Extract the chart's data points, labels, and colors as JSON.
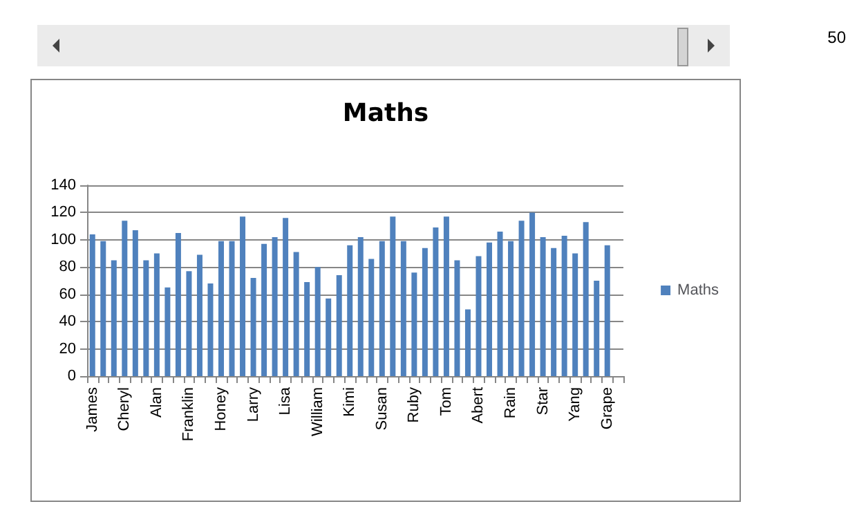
{
  "chart_data": {
    "type": "bar",
    "title": "Maths",
    "categories": [
      "James",
      null,
      null,
      "Cheryl",
      null,
      null,
      "Alan",
      null,
      null,
      "Franklin",
      null,
      null,
      "Honey",
      null,
      null,
      "Larry",
      null,
      null,
      "Lisa",
      null,
      null,
      "William",
      null,
      null,
      "Kimi",
      null,
      null,
      "Susan",
      null,
      null,
      "Ruby",
      null,
      null,
      "Tom",
      null,
      null,
      "Abert",
      null,
      null,
      "Rain",
      null,
      null,
      "Star",
      null,
      null,
      "Yang",
      null,
      null,
      "Grape",
      null
    ],
    "series": [
      {
        "name": "Maths",
        "color": "#4f81bd",
        "values": [
          104,
          99,
          85,
          114,
          107,
          85,
          90,
          65,
          105,
          77,
          89,
          68,
          99,
          99,
          117,
          72,
          97,
          102,
          116,
          91,
          69,
          80,
          57,
          74,
          96,
          102,
          86,
          99,
          117,
          99,
          76,
          94,
          109,
          117,
          85,
          49,
          88,
          98,
          106,
          99,
          114,
          120,
          102,
          94,
          103,
          90,
          113,
          70,
          96,
          null
        ]
      }
    ],
    "ylim": [
      0,
      140
    ],
    "yticks": [
      0,
      20,
      40,
      60,
      80,
      100,
      120,
      140
    ],
    "grid": "y",
    "legend": "right",
    "annotations": [
      "50"
    ]
  }
}
